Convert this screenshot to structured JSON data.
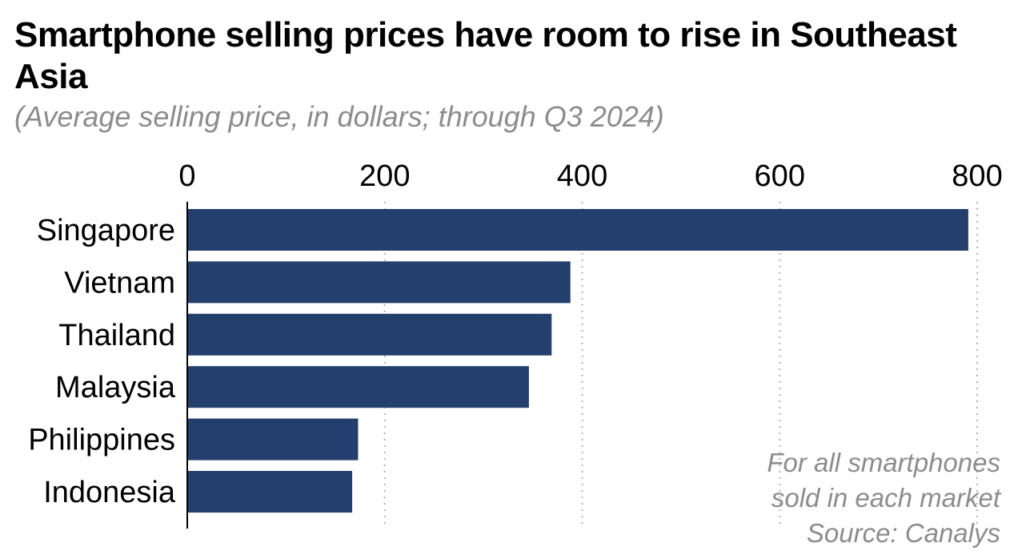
{
  "colors": {
    "bar": "#233f6d",
    "grid": "#b3b3b3",
    "axis": "#000000"
  },
  "chart_data": {
    "type": "bar",
    "orientation": "horizontal",
    "title": "Smartphone selling prices have room to rise in Southeast Asia",
    "subtitle": "(Average selling price, in dollars; through Q3 2024)",
    "categories": [
      "Singapore",
      "Vietnam",
      "Thailand",
      "Malaysia",
      "Philippines",
      "Indonesia"
    ],
    "values": [
      791,
      388,
      369,
      346,
      173,
      167
    ],
    "xlim": [
      0,
      800
    ],
    "xticks": [
      "0",
      "200",
      "400",
      "600",
      "800"
    ],
    "grid": "vertical dotted",
    "notes": [
      "For all smartphones",
      "sold in each market",
      "Source: Canalys"
    ]
  }
}
